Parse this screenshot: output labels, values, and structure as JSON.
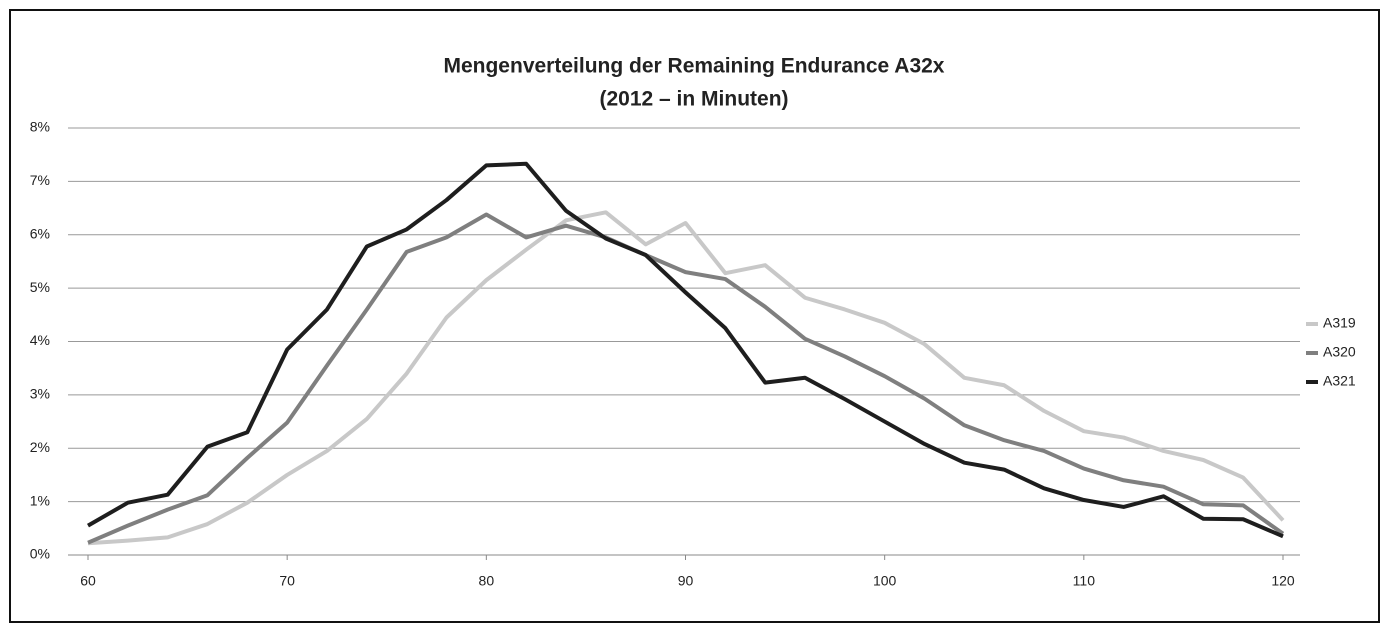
{
  "chart_data": {
    "type": "line",
    "title": "Mengenverteilung der Remaining Endurance A32x",
    "subtitle": "(2012 – in Minuten)",
    "x": [
      60,
      62,
      64,
      66,
      68,
      70,
      72,
      74,
      76,
      78,
      80,
      82,
      84,
      86,
      88,
      90,
      92,
      94,
      96,
      98,
      100,
      102,
      104,
      106,
      108,
      110,
      112,
      114,
      116,
      118,
      120
    ],
    "series": [
      {
        "name": "A319",
        "color": "#c8c8c8",
        "values": [
          0.22,
          0.27,
          0.33,
          0.58,
          0.98,
          1.5,
          1.95,
          2.55,
          3.4,
          4.45,
          5.15,
          5.72,
          6.27,
          6.42,
          5.82,
          6.22,
          5.28,
          5.43,
          4.82,
          4.6,
          4.35,
          3.95,
          3.32,
          3.18,
          2.7,
          2.32,
          2.2,
          1.95,
          1.78,
          1.45,
          0.65
        ]
      },
      {
        "name": "A320",
        "color": "#7f7f7f",
        "values": [
          0.23,
          0.55,
          0.85,
          1.12,
          1.82,
          2.48,
          3.55,
          4.6,
          5.68,
          5.95,
          6.38,
          5.95,
          6.17,
          5.95,
          5.62,
          5.3,
          5.17,
          4.65,
          4.05,
          3.72,
          3.35,
          2.93,
          2.43,
          2.15,
          1.95,
          1.62,
          1.4,
          1.28,
          0.95,
          0.93,
          0.4
        ]
      },
      {
        "name": "A321",
        "color": "#1e1e1e",
        "values": [
          0.55,
          0.98,
          1.13,
          2.03,
          2.3,
          3.85,
          4.6,
          5.78,
          6.1,
          6.65,
          7.3,
          7.33,
          6.45,
          5.93,
          5.62,
          4.92,
          4.25,
          3.23,
          3.32,
          2.92,
          2.5,
          2.08,
          1.73,
          1.6,
          1.25,
          1.03,
          0.9,
          1.1,
          0.68,
          0.67,
          0.35
        ]
      }
    ],
    "xlim": [
      60,
      120
    ],
    "xticks": [
      60,
      70,
      80,
      90,
      100,
      110,
      120
    ],
    "ylim": [
      0,
      8
    ],
    "yticks": [
      {
        "value": 0,
        "label": "0%"
      },
      {
        "value": 1,
        "label": "1%"
      },
      {
        "value": 2,
        "label": "2%"
      },
      {
        "value": 3,
        "label": "3%"
      },
      {
        "value": 4,
        "label": "4%"
      },
      {
        "value": 5,
        "label": "5%"
      },
      {
        "value": 6,
        "label": "6%"
      },
      {
        "value": 7,
        "label": "7%"
      },
      {
        "value": 8,
        "label": "8%"
      }
    ],
    "grid": true,
    "legend": "right"
  }
}
